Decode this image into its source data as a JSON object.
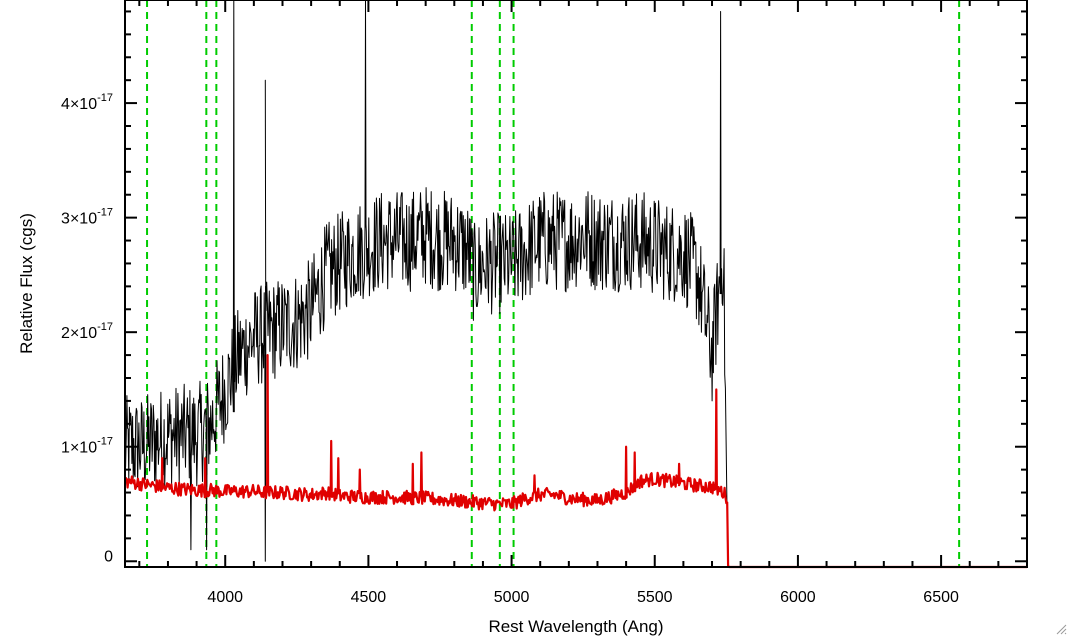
{
  "chart_data": {
    "type": "line",
    "title": "",
    "xlabel": "Rest Wavelength (Ang)",
    "ylabel": "Relative Flux (cgs)",
    "xlim": [
      3650,
      6800
    ],
    "ylim": [
      -5e-19,
      4.9e-17
    ],
    "x_ticks": [
      {
        "value": 4000,
        "label": "4000"
      },
      {
        "value": 4500,
        "label": "4500"
      },
      {
        "value": 5000,
        "label": "5000"
      },
      {
        "value": 5500,
        "label": "5500"
      },
      {
        "value": 6000,
        "label": "6000"
      },
      {
        "value": 6500,
        "label": "6500"
      }
    ],
    "y_ticks": [
      {
        "value": 0,
        "mantissa": "0",
        "exp": ""
      },
      {
        "value": 1e-17,
        "mantissa": "1×10",
        "exp": "-17"
      },
      {
        "value": 2e-17,
        "mantissa": "2×10",
        "exp": "-17"
      },
      {
        "value": 3e-17,
        "mantissa": "3×10",
        "exp": "-17"
      },
      {
        "value": 4e-17,
        "mantissa": "4×10",
        "exp": "-17"
      }
    ],
    "x_minor_step": 100,
    "y_minor_step": 2e-18,
    "grid": false,
    "legend": "none",
    "reference_lines": [
      3727,
      3934,
      3969,
      4861,
      4959,
      5007,
      6563
    ],
    "series": [
      {
        "color": "#000000",
        "style": "solid-thin-noisy",
        "x": [
          3650,
          3700,
          3750,
          3800,
          3850,
          3900,
          3950,
          4000,
          4050,
          4100,
          4150,
          4200,
          4250,
          4300,
          4350,
          4400,
          4450,
          4500,
          4550,
          4600,
          4650,
          4700,
          4750,
          4800,
          4850,
          4870,
          4900,
          4950,
          5000,
          5050,
          5100,
          5150,
          5200,
          5250,
          5300,
          5350,
          5400,
          5450,
          5500,
          5550,
          5600,
          5650,
          5700,
          5740,
          5755
        ],
        "values": [
          1e-17,
          1e-17,
          1.05e-17,
          1.1e-17,
          1.1e-17,
          1.1e-17,
          1.2e-17,
          1.5e-17,
          1.8e-17,
          1.95e-17,
          2e-17,
          2.05e-17,
          2.1e-17,
          2.2e-17,
          2.5e-17,
          2.6e-17,
          2.7e-17,
          2.75e-17,
          2.8e-17,
          2.8e-17,
          2.8e-17,
          2.85e-17,
          2.8e-17,
          2.8e-17,
          2.7e-17,
          2.5e-17,
          2.6e-17,
          2.6e-17,
          2.6e-17,
          2.7e-17,
          2.8e-17,
          2.8e-17,
          2.8e-17,
          2.85e-17,
          2.8e-17,
          2.8e-17,
          2.8e-17,
          2.8e-17,
          2.75e-17,
          2.7e-17,
          2.7e-17,
          2.5e-17,
          1.8e-17,
          2.7e-17,
          0
        ],
        "spikes": [
          {
            "x": 4030,
            "value": 6e-17
          },
          {
            "x": 4140,
            "value": 4.2e-17
          },
          {
            "x": 4140,
            "value": 0
          },
          {
            "x": 4490,
            "value": 5e-17
          },
          {
            "x": 5730,
            "value": 4.8e-17
          },
          {
            "x": 3880,
            "value": 1e-18
          },
          {
            "x": 3935,
            "value": 1e-18
          }
        ],
        "noise_amplitude": 4.5e-18
      },
      {
        "color": "#e00000",
        "style": "solid-thick",
        "x": [
          3650,
          3700,
          3750,
          3800,
          3850,
          3900,
          3950,
          4000,
          4050,
          4100,
          4140,
          4200,
          4300,
          4360,
          4400,
          4500,
          4600,
          4700,
          4800,
          4850,
          4900,
          4950,
          5000,
          5050,
          5100,
          5150,
          5200,
          5300,
          5400,
          5450,
          5500,
          5550,
          5600,
          5650,
          5700,
          5740,
          5755,
          5756,
          6000,
          6500,
          6800
        ],
        "values": [
          7e-18,
          6.8e-18,
          6.6e-18,
          6.4e-18,
          6.3e-18,
          6.2e-18,
          6.2e-18,
          6.1e-18,
          6.1e-18,
          6.1e-18,
          6e-18,
          6e-18,
          5.8e-18,
          6e-18,
          5.7e-18,
          5.6e-18,
          5.6e-18,
          5.5e-18,
          5.3e-18,
          5.2e-18,
          5.1e-18,
          5e-18,
          5e-18,
          5.5e-18,
          5.8e-18,
          5.8e-18,
          5.5e-18,
          5.3e-18,
          6e-18,
          7e-18,
          7.2e-18,
          7e-18,
          6.8e-18,
          6.6e-18,
          6.5e-18,
          6e-18,
          5.5e-18,
          -5e-19,
          -5e-19,
          -5e-19,
          -5e-19
        ],
        "spikes": [
          {
            "x": 4148,
            "value": 1.8e-17
          },
          {
            "x": 4370,
            "value": 1.05e-17
          },
          {
            "x": 4395,
            "value": 9e-18
          },
          {
            "x": 4470,
            "value": 8e-18
          },
          {
            "x": 4655,
            "value": 8.5e-18
          },
          {
            "x": 4685,
            "value": 9.5e-18
          },
          {
            "x": 5080,
            "value": 7.5e-18
          },
          {
            "x": 5400,
            "value": 1e-17
          },
          {
            "x": 5430,
            "value": 9.5e-18
          },
          {
            "x": 5585,
            "value": 8.5e-18
          },
          {
            "x": 5715,
            "value": 1.5e-17
          },
          {
            "x": 3780,
            "value": 9e-18
          },
          {
            "x": 3930,
            "value": 9e-18
          }
        ],
        "noise_amplitude": 6e-19
      }
    ],
    "reference_line_color": "#00cc00"
  }
}
